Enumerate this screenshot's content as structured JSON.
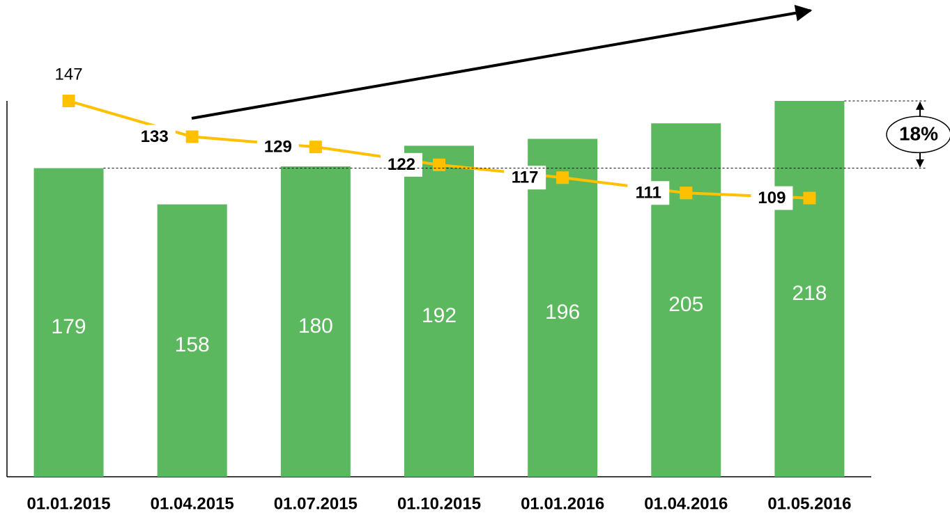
{
  "chart_data": {
    "type": "bar",
    "categories": [
      "01.01.2015",
      "01.04.2015",
      "01.07.2015",
      "01.10.2015",
      "01.01.2016",
      "01.04.2016",
      "01.05.2016"
    ],
    "series": [
      {
        "type": "bar",
        "color": "#5cb85f",
        "values": [
          179,
          158,
          180,
          192,
          196,
          205,
          218
        ]
      },
      {
        "type": "line",
        "axis": "y2",
        "color": "#ffc000",
        "values": [
          147,
          133,
          129,
          122,
          117,
          111,
          109
        ]
      }
    ],
    "ylim": [
      0,
      218
    ],
    "y2lim": [
      0,
      147
    ],
    "annotations": [
      "18%"
    ]
  }
}
